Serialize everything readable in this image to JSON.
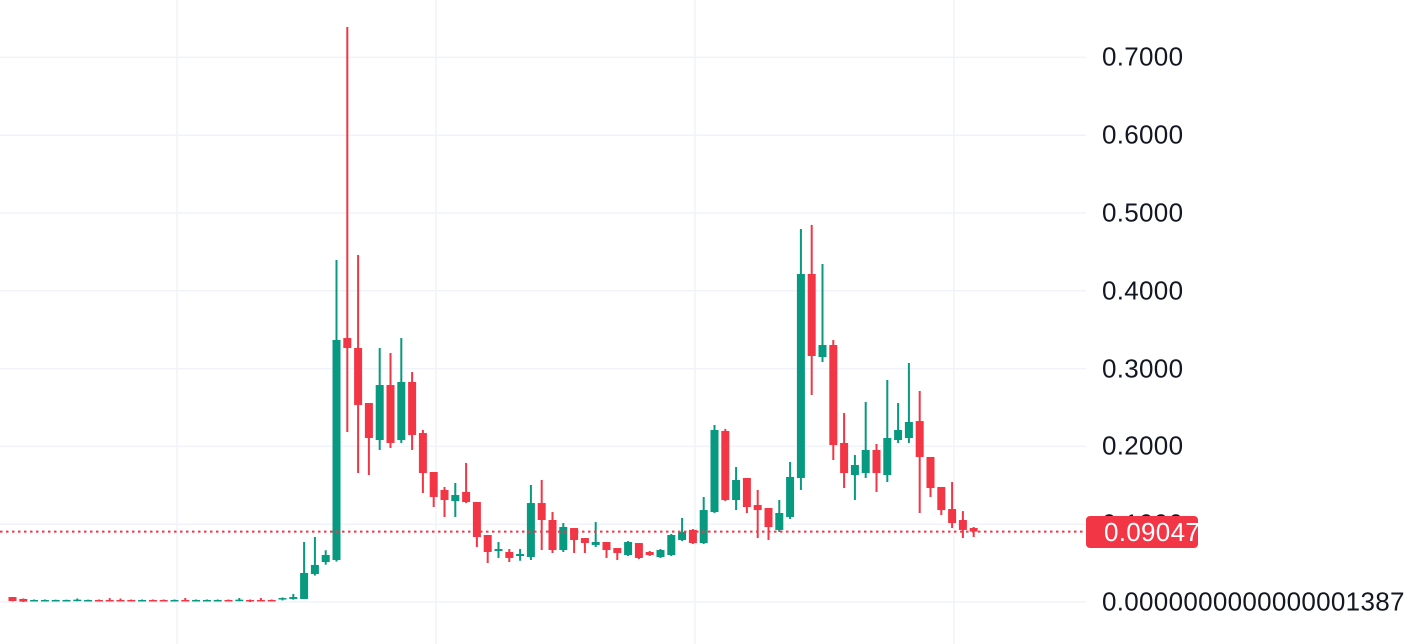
{
  "chart_data": {
    "type": "candlestick",
    "title": "",
    "xlabel": "",
    "ylabel": "",
    "ylim": [
      -0.054,
      0.774
    ],
    "grid": {
      "horizontal": "on",
      "vertical": "on"
    },
    "legend": "none",
    "y_axis": {
      "side": "right",
      "ticks": [
        {
          "value": 0.7,
          "label": "0.7000"
        },
        {
          "value": 0.6,
          "label": "0.6000"
        },
        {
          "value": 0.5,
          "label": "0.5000"
        },
        {
          "value": 0.4,
          "label": "0.4000"
        },
        {
          "value": 0.3,
          "label": "0.3000"
        },
        {
          "value": 0.2,
          "label": "0.2000"
        },
        {
          "value": 0.1,
          "label": "0.1000",
          "partially_hidden_behind_price_label": true
        },
        {
          "value": 0.0,
          "label": "0.0000000000000001387"
        }
      ]
    },
    "x_axis": {
      "labels": []
    },
    "price_line": {
      "value": 0.09047,
      "label": "0.09047",
      "style": "dotted",
      "color": "#f23645"
    },
    "colors": {
      "up": "#089981",
      "down": "#f23645",
      "grid": "#f0f3fa",
      "axis_text": "#131722",
      "price_label_bg": "#f23645",
      "price_label_text": "#ffffff",
      "background": "#ffffff"
    },
    "ohlc_order": [
      "open",
      "high",
      "low",
      "close"
    ],
    "candles": [
      [
        0.0064,
        0.0064,
        0.0008,
        0.0013
      ],
      [
        0.0039,
        0.0045,
        0.0001,
        0.0005
      ],
      [
        0.0013,
        0.0032,
        0.0008,
        0.0026
      ],
      [
        0.0013,
        0.0032,
        0.0008,
        0.0026
      ],
      [
        0.0015,
        0.003,
        0.001,
        0.0026
      ],
      [
        0.0015,
        0.003,
        0.001,
        0.0026
      ],
      [
        0.0015,
        0.0045,
        0.001,
        0.003
      ],
      [
        0.0015,
        0.003,
        0.001,
        0.0026
      ],
      [
        0.0026,
        0.0032,
        0.0008,
        0.0013
      ],
      [
        0.0026,
        0.005,
        0.0008,
        0.0013
      ],
      [
        0.0026,
        0.0045,
        0.0008,
        0.0015
      ],
      [
        0.0026,
        0.0032,
        0.0008,
        0.0013
      ],
      [
        0.0013,
        0.0032,
        0.0008,
        0.0026
      ],
      [
        0.0026,
        0.0032,
        0.0008,
        0.0013
      ],
      [
        0.0026,
        0.0032,
        0.0008,
        0.0013
      ],
      [
        0.0013,
        0.0032,
        0.0008,
        0.0026
      ],
      [
        0.0026,
        0.0051,
        0.0008,
        0.0015
      ],
      [
        0.0013,
        0.0032,
        0.0008,
        0.0026
      ],
      [
        0.0013,
        0.0032,
        0.0008,
        0.0026
      ],
      [
        0.0013,
        0.0032,
        0.0008,
        0.0026
      ],
      [
        0.0026,
        0.0032,
        0.0008,
        0.0013
      ],
      [
        0.0015,
        0.0051,
        0.001,
        0.003
      ],
      [
        0.0026,
        0.0032,
        0.0,
        0.0013
      ],
      [
        0.0026,
        0.0051,
        0.0008,
        0.0015
      ],
      [
        0.0026,
        0.0032,
        0.0008,
        0.0013
      ],
      [
        0.0032,
        0.0058,
        0.002,
        0.0051
      ],
      [
        0.0039,
        0.0103,
        0.003,
        0.0064
      ],
      [
        0.0039,
        0.0771,
        0.0039,
        0.0373
      ],
      [
        0.036,
        0.0836,
        0.034,
        0.0476
      ],
      [
        0.0514,
        0.0665,
        0.048,
        0.0604
      ],
      [
        0.054,
        0.4396,
        0.052,
        0.3368
      ],
      [
        0.3393,
        0.7391,
        0.2185,
        0.3265
      ],
      [
        0.3265,
        0.446,
        0.1658,
        0.2532
      ],
      [
        0.2558,
        0.2558,
        0.1632,
        0.2108
      ],
      [
        0.2082,
        0.3265,
        0.1954,
        0.2789
      ],
      [
        0.2789,
        0.3201,
        0.1979,
        0.2044
      ],
      [
        0.2082,
        0.3393,
        0.2044,
        0.2828
      ],
      [
        0.2828,
        0.2956,
        0.1954,
        0.2147
      ],
      [
        0.2172,
        0.2211,
        0.1401,
        0.1658
      ],
      [
        0.1671,
        0.1671,
        0.1221,
        0.135
      ],
      [
        0.144,
        0.1478,
        0.1093,
        0.1311
      ],
      [
        0.1298,
        0.153,
        0.1093,
        0.1375
      ],
      [
        0.1414,
        0.1787,
        0.1272,
        0.1285
      ],
      [
        0.1285,
        0.1285,
        0.0707,
        0.0835
      ],
      [
        0.0861,
        0.0861,
        0.0501,
        0.0643
      ],
      [
        0.0656,
        0.0771,
        0.0566,
        0.0681
      ],
      [
        0.0643,
        0.0681,
        0.0514,
        0.0566
      ],
      [
        0.0591,
        0.0681,
        0.053,
        0.0617
      ],
      [
        0.0578,
        0.1504,
        0.054,
        0.1272
      ],
      [
        0.1272,
        0.1568,
        0.0668,
        0.1054
      ],
      [
        0.1054,
        0.1157,
        0.063,
        0.0668
      ],
      [
        0.0668,
        0.1015,
        0.0643,
        0.0964
      ],
      [
        0.0951,
        0.0951,
        0.063,
        0.0797
      ],
      [
        0.0822,
        0.0822,
        0.063,
        0.0758
      ],
      [
        0.0733,
        0.1028,
        0.0707,
        0.0771
      ],
      [
        0.0771,
        0.0771,
        0.0566,
        0.0668
      ],
      [
        0.0694,
        0.0694,
        0.054,
        0.063
      ],
      [
        0.0604,
        0.0784,
        0.0591,
        0.0771
      ],
      [
        0.0758,
        0.0758,
        0.0553,
        0.0566
      ],
      [
        0.0643,
        0.0656,
        0.0591,
        0.0604
      ],
      [
        0.0578,
        0.0681,
        0.0566,
        0.0668
      ],
      [
        0.0604,
        0.0874,
        0.0591,
        0.0861
      ],
      [
        0.0797,
        0.108,
        0.0784,
        0.09
      ],
      [
        0.0926,
        0.0938,
        0.0746,
        0.0758
      ],
      [
        0.0758,
        0.135,
        0.0746,
        0.1182
      ],
      [
        0.1157,
        0.2275,
        0.1144,
        0.2211
      ],
      [
        0.2198,
        0.2224,
        0.1298,
        0.1311
      ],
      [
        0.1311,
        0.1735,
        0.1182,
        0.1568
      ],
      [
        0.1594,
        0.1594,
        0.1144,
        0.1221
      ],
      [
        0.1247,
        0.144,
        0.0822,
        0.1182
      ],
      [
        0.1208,
        0.1208,
        0.0797,
        0.0964
      ],
      [
        0.0926,
        0.1311,
        0.09,
        0.1144
      ],
      [
        0.1093,
        0.18,
        0.1067,
        0.1607
      ],
      [
        0.1594,
        0.4794,
        0.144,
        0.4216
      ],
      [
        0.4216,
        0.4846,
        0.2661,
        0.3162
      ],
      [
        0.3149,
        0.4344,
        0.3085,
        0.3303
      ],
      [
        0.3303,
        0.3367,
        0.1825,
        0.2018
      ],
      [
        0.2044,
        0.2429,
        0.1465,
        0.1658
      ],
      [
        0.1632,
        0.1889,
        0.1311,
        0.1761
      ],
      [
        0.1658,
        0.2571,
        0.1594,
        0.1954
      ],
      [
        0.1954,
        0.2031,
        0.1414,
        0.1658
      ],
      [
        0.1632,
        0.2854,
        0.1542,
        0.2108
      ],
      [
        0.2082,
        0.2558,
        0.2044,
        0.2211
      ],
      [
        0.2108,
        0.3072,
        0.2044,
        0.2314
      ],
      [
        0.2326,
        0.2712,
        0.1144,
        0.1864
      ],
      [
        0.1864,
        0.1864,
        0.135,
        0.1465
      ],
      [
        0.1478,
        0.1478,
        0.1118,
        0.1182
      ],
      [
        0.1195,
        0.1542,
        0.0951,
        0.1015
      ],
      [
        0.1054,
        0.1169,
        0.0822,
        0.0926
      ],
      [
        0.0951,
        0.0964,
        0.0835,
        0.09047
      ]
    ]
  }
}
